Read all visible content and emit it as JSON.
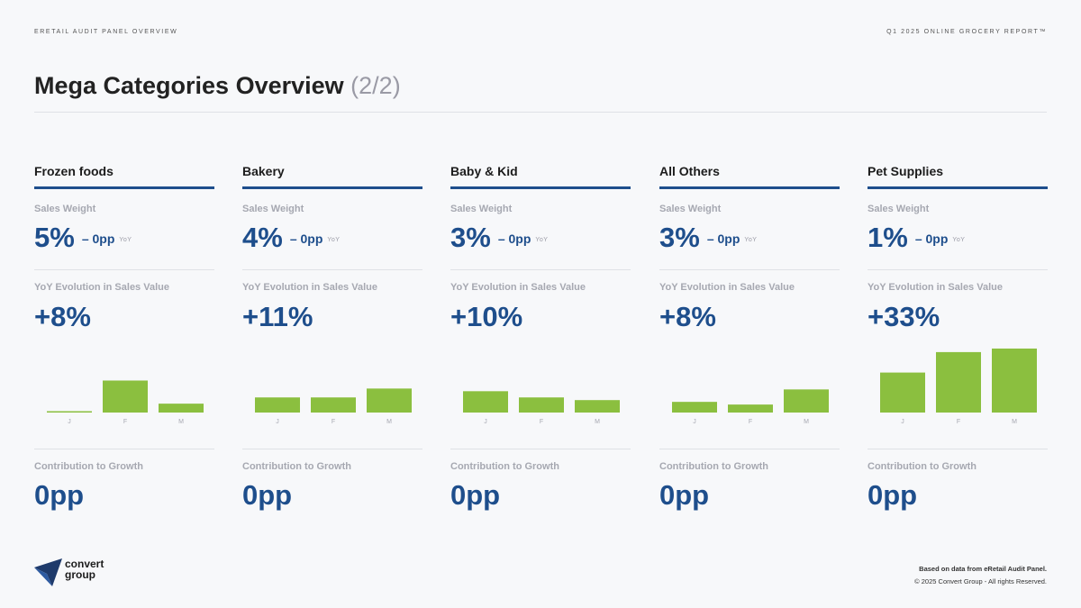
{
  "header": {
    "left": "ERETAIL AUDIT PANEL OVERVIEW",
    "right": "Q1 2025 ONLINE GROCERY REPORT™"
  },
  "title": {
    "main": "Mega Categories Overview",
    "page": "(2/2)"
  },
  "labels": {
    "sales_weight": "Sales Weight",
    "yoy_evolution": "YoY Evolution in Sales Value",
    "contribution": "Contribution to Growth",
    "yoy_tag": "YoY"
  },
  "categories": [
    {
      "name": "Frozen foods",
      "sales_weight": "5%",
      "delta": "– 0pp",
      "yoy_evolution": "+8%",
      "contribution": "0pp"
    },
    {
      "name": "Bakery",
      "sales_weight": "4%",
      "delta": "– 0pp",
      "yoy_evolution": "+11%",
      "contribution": "0pp"
    },
    {
      "name": "Baby & Kid",
      "sales_weight": "3%",
      "delta": "– 0pp",
      "yoy_evolution": "+10%",
      "contribution": "0pp"
    },
    {
      "name": "All Others",
      "sales_weight": "3%",
      "delta": "– 0pp",
      "yoy_evolution": "+8%",
      "contribution": "0pp"
    },
    {
      "name": "Pet Supplies",
      "sales_weight": "1%",
      "delta": "– 0pp",
      "yoy_evolution": "+33%",
      "contribution": "0pp"
    }
  ],
  "chart_data": [
    {
      "type": "bar",
      "categories": [
        "J",
        "F",
        "M"
      ],
      "values": [
        1,
        36,
        10
      ],
      "ylim": [
        0,
        75
      ]
    },
    {
      "type": "bar",
      "categories": [
        "J",
        "F",
        "M"
      ],
      "values": [
        17,
        17,
        27
      ],
      "ylim": [
        0,
        75
      ]
    },
    {
      "type": "bar",
      "categories": [
        "J",
        "F",
        "M"
      ],
      "values": [
        24,
        17,
        14
      ],
      "ylim": [
        0,
        75
      ]
    },
    {
      "type": "bar",
      "categories": [
        "J",
        "F",
        "M"
      ],
      "values": [
        12,
        9,
        26
      ],
      "ylim": [
        0,
        75
      ]
    },
    {
      "type": "bar",
      "categories": [
        "J",
        "F",
        "M"
      ],
      "values": [
        45,
        68,
        72
      ],
      "ylim": [
        0,
        75
      ]
    }
  ],
  "colors": {
    "accent": "#1e4e8c",
    "bar": "#8bbf3f",
    "muted": "#a6a8b1"
  },
  "logo": {
    "line1": "convert",
    "line2": "group",
    "icon": "paper-plane-icon"
  },
  "footer": {
    "source": "Based on data from eRetail Audit Panel.",
    "copyright": "© 2025 Convert Group - All rights Reserved."
  }
}
